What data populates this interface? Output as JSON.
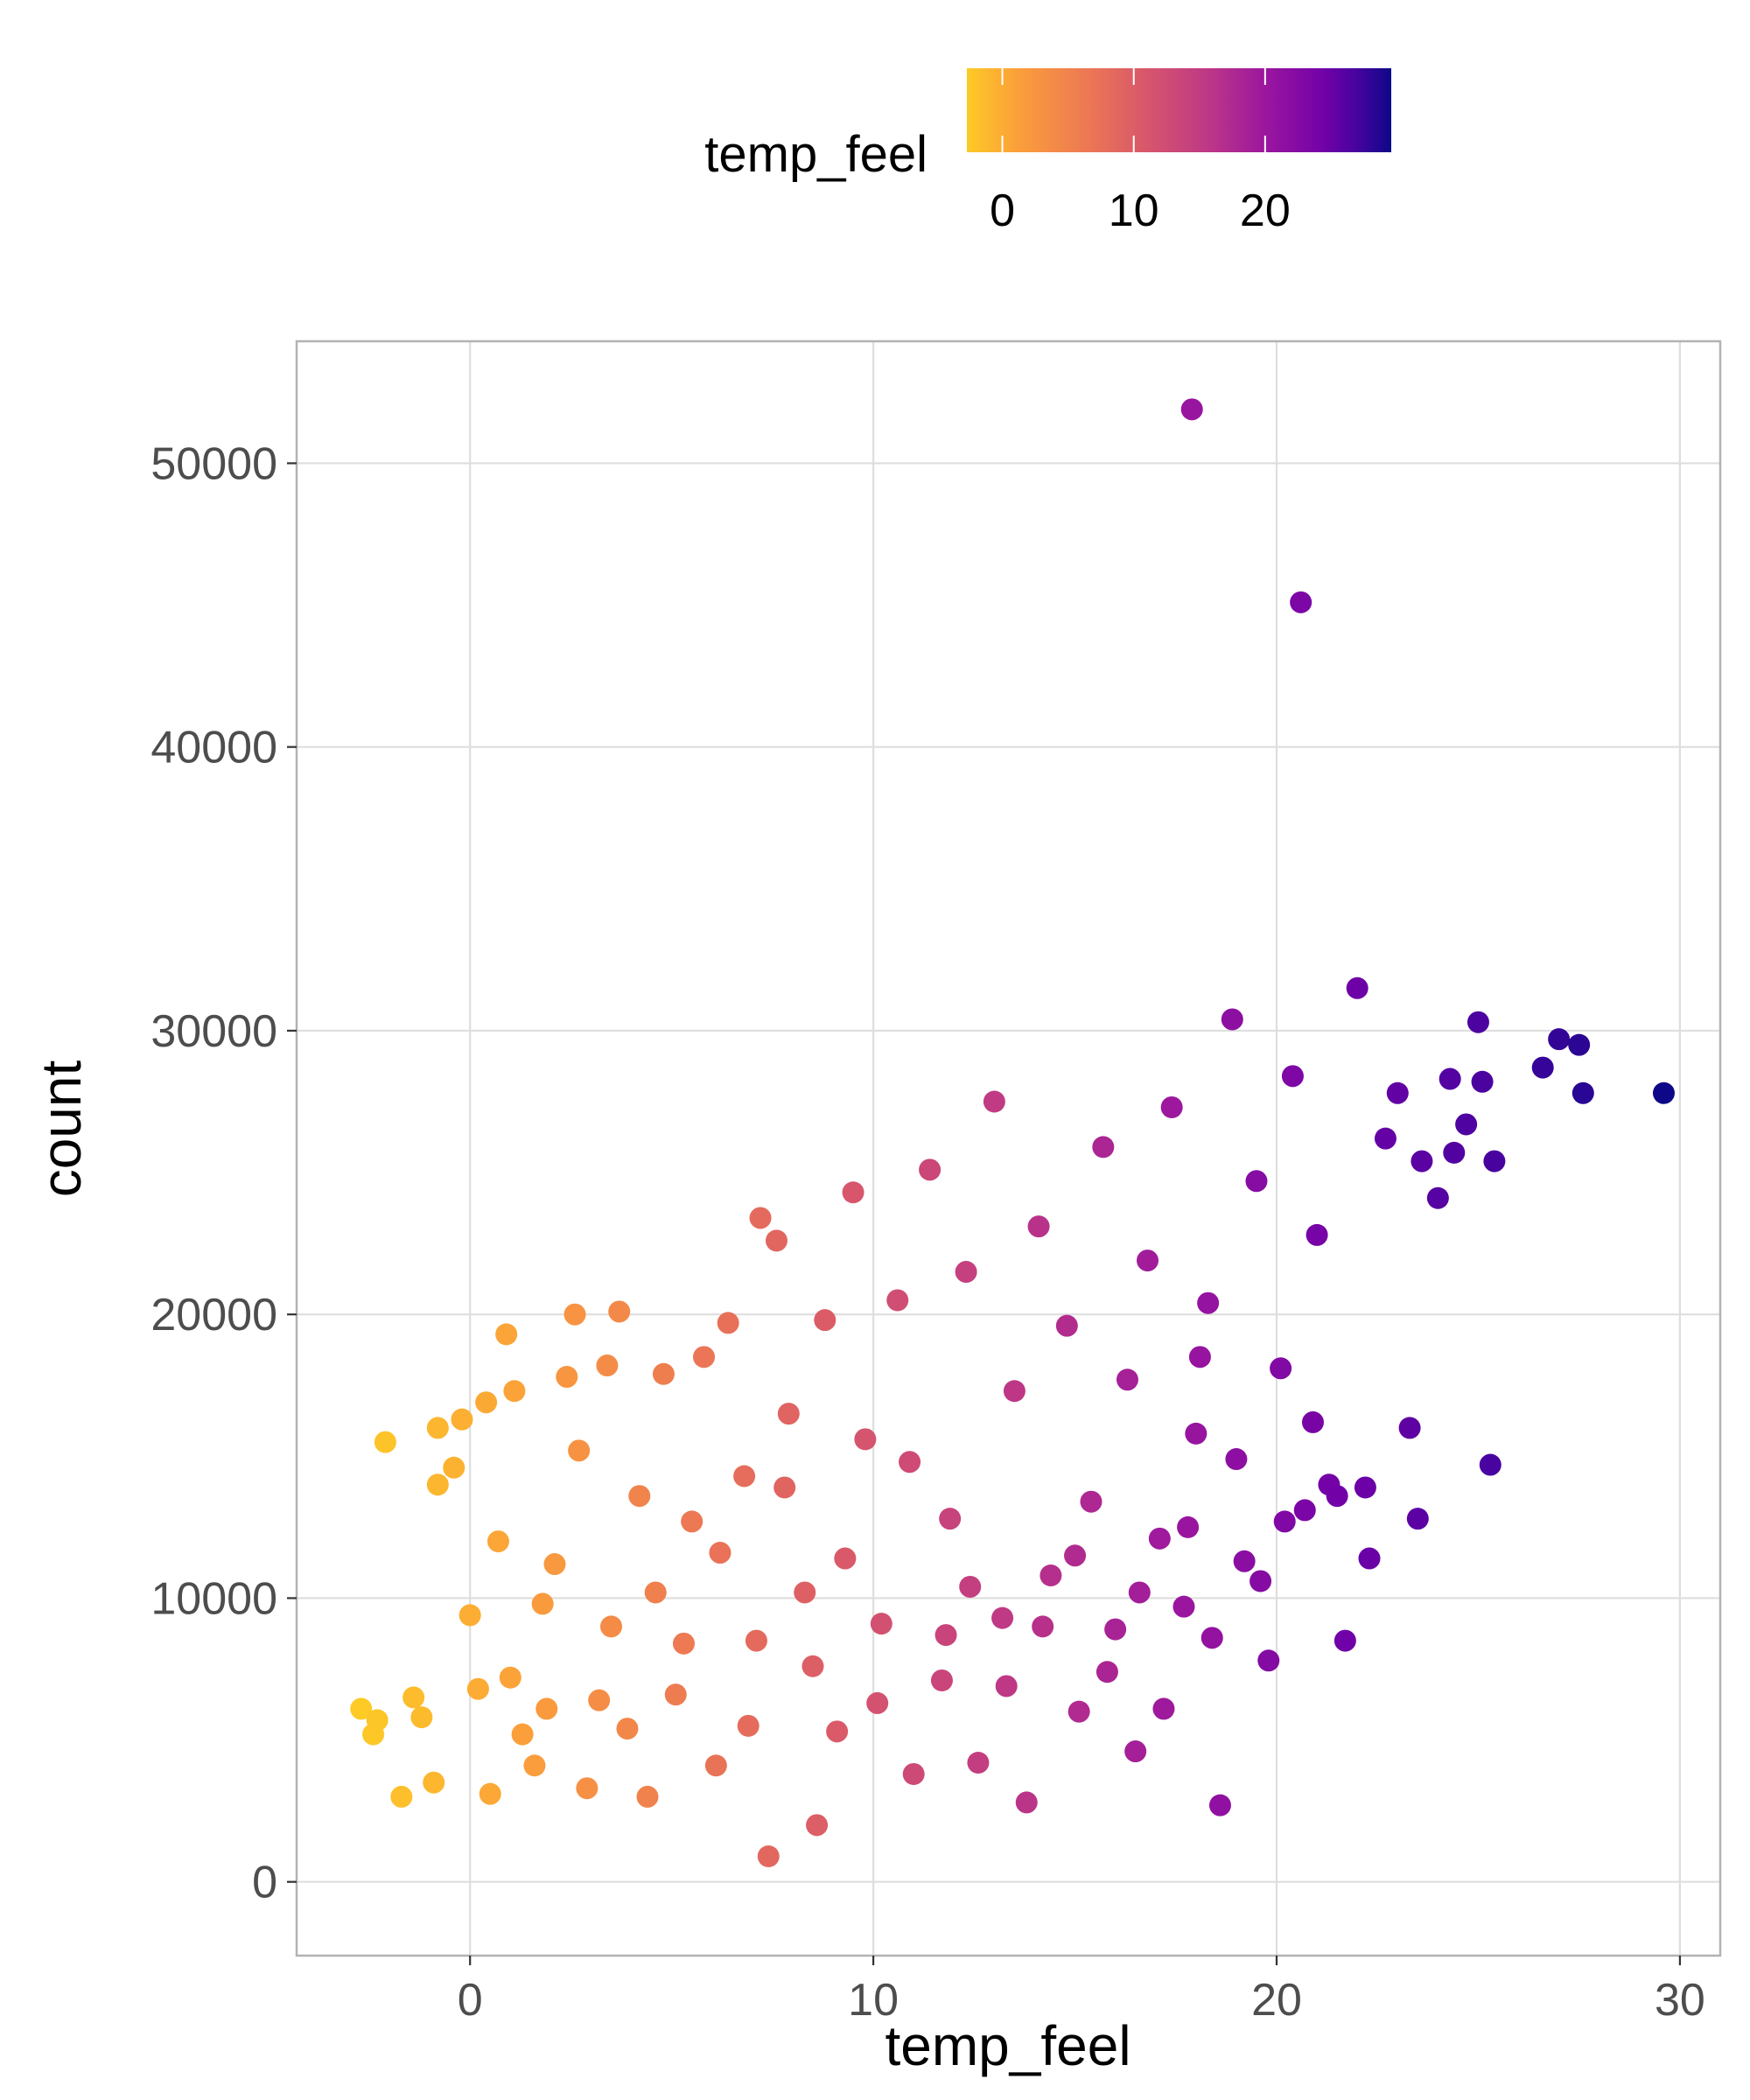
{
  "chart_data": {
    "type": "scatter",
    "title": "",
    "xlabel": "temp_feel",
    "ylabel": "count",
    "xlim": [
      -4.3,
      31
    ],
    "ylim": [
      -2600,
      54300
    ],
    "x_ticks": [
      0,
      10,
      20,
      30
    ],
    "y_ticks": [
      0,
      10000,
      20000,
      30000,
      40000,
      50000
    ],
    "x_tick_labels": [
      "0",
      "10",
      "20",
      "30"
    ],
    "y_tick_labels": [
      "0",
      "10000",
      "20000",
      "30000",
      "40000",
      "50000"
    ],
    "grid": true,
    "legend": {
      "title": "temp_feel",
      "placement": "top",
      "type": "colorbar",
      "range": [
        -2.7,
        29.6
      ],
      "ticks": [
        0,
        10,
        20
      ],
      "tick_labels": [
        "0",
        "10",
        "20"
      ],
      "palette": [
        "#0d0887",
        "#46039f",
        "#7201a8",
        "#9c179e",
        "#bd3786",
        "#d8576b",
        "#ed7953",
        "#fb9f3a",
        "#fdca26",
        "#f0f921"
      ]
    },
    "colors": {
      "panel_border": "#b3b3b3",
      "grid": "#dedede",
      "tick_label": "#4d4d4d"
    },
    "points": [
      [
        17.9,
        51900
      ],
      [
        20.6,
        45100
      ],
      [
        -2.7,
        6100
      ],
      [
        -2.4,
        5200
      ],
      [
        -2.3,
        5700
      ],
      [
        -2.1,
        15500
      ],
      [
        -1.7,
        3000
      ],
      [
        -1.4,
        6500
      ],
      [
        -1.2,
        5800
      ],
      [
        -0.9,
        3500
      ],
      [
        -0.8,
        14000
      ],
      [
        -0.8,
        16000
      ],
      [
        -0.4,
        14600
      ],
      [
        -0.2,
        16300
      ],
      [
        0.0,
        9400
      ],
      [
        0.2,
        6800
      ],
      [
        0.4,
        16900
      ],
      [
        0.7,
        12000
      ],
      [
        0.9,
        19300
      ],
      [
        1.1,
        17300
      ],
      [
        1.3,
        5200
      ],
      [
        1.6,
        4100
      ],
      [
        1.8,
        9800
      ],
      [
        2.1,
        11200
      ],
      [
        2.4,
        17800
      ],
      [
        2.6,
        20000
      ],
      [
        2.9,
        3300
      ],
      [
        3.2,
        6400
      ],
      [
        3.4,
        18200
      ],
      [
        3.7,
        20100
      ],
      [
        3.9,
        5400
      ],
      [
        4.2,
        13600
      ],
      [
        4.6,
        10200
      ],
      [
        4.8,
        17900
      ],
      [
        5.1,
        6600
      ],
      [
        5.5,
        12700
      ],
      [
        5.8,
        18500
      ],
      [
        6.1,
        4100
      ],
      [
        6.4,
        19700
      ],
      [
        6.8,
        14300
      ],
      [
        7.1,
        8500
      ],
      [
        7.2,
        23400
      ],
      [
        7.4,
        900
      ],
      [
        7.6,
        22600
      ],
      [
        7.9,
        16500
      ],
      [
        8.3,
        10200
      ],
      [
        8.6,
        2000
      ],
      [
        8.8,
        19800
      ],
      [
        9.1,
        5300
      ],
      [
        9.5,
        24300
      ],
      [
        9.8,
        15600
      ],
      [
        10.2,
        9100
      ],
      [
        10.6,
        20500
      ],
      [
        11.0,
        3800
      ],
      [
        11.4,
        25100
      ],
      [
        11.7,
        7100
      ],
      [
        11.9,
        12800
      ],
      [
        12.3,
        21500
      ],
      [
        12.6,
        4200
      ],
      [
        13.0,
        27500
      ],
      [
        13.2,
        9300
      ],
      [
        13.5,
        17300
      ],
      [
        13.8,
        2800
      ],
      [
        14.1,
        23100
      ],
      [
        14.4,
        10800
      ],
      [
        14.8,
        19600
      ],
      [
        15.1,
        6000
      ],
      [
        15.4,
        13400
      ],
      [
        15.7,
        25900
      ],
      [
        16.0,
        8900
      ],
      [
        16.3,
        17700
      ],
      [
        16.5,
        4600
      ],
      [
        16.8,
        21900
      ],
      [
        17.1,
        12100
      ],
      [
        17.4,
        27300
      ],
      [
        17.7,
        9700
      ],
      [
        18.0,
        15800
      ],
      [
        18.3,
        20400
      ],
      [
        18.6,
        2700
      ],
      [
        18.9,
        30400
      ],
      [
        19.2,
        11300
      ],
      [
        19.5,
        24700
      ],
      [
        19.8,
        7800
      ],
      [
        20.1,
        18100
      ],
      [
        20.4,
        28400
      ],
      [
        20.7,
        13100
      ],
      [
        21.0,
        22800
      ],
      [
        21.3,
        14000
      ],
      [
        21.7,
        8500
      ],
      [
        22.0,
        31500
      ],
      [
        22.3,
        11400
      ],
      [
        22.7,
        26200
      ],
      [
        23.0,
        27800
      ],
      [
        23.3,
        16000
      ],
      [
        23.6,
        25400
      ],
      [
        24.0,
        24100
      ],
      [
        24.3,
        28300
      ],
      [
        24.7,
        26700
      ],
      [
        25.0,
        30300
      ],
      [
        25.3,
        14700
      ],
      [
        25.4,
        25400
      ],
      [
        26.6,
        28700
      ],
      [
        27.0,
        29700
      ],
      [
        27.5,
        29500
      ],
      [
        27.6,
        27800
      ],
      [
        29.6,
        27800
      ],
      [
        25.1,
        28200
      ],
      [
        24.4,
        25700
      ],
      [
        23.5,
        12800
      ],
      [
        22.2,
        13900
      ],
      [
        0.5,
        3100
      ],
      [
        1.0,
        7200
      ],
      [
        1.9,
        6100
      ],
      [
        2.7,
        15200
      ],
      [
        3.5,
        9000
      ],
      [
        4.4,
        3000
      ],
      [
        5.3,
        8400
      ],
      [
        6.2,
        11600
      ],
      [
        6.9,
        5500
      ],
      [
        7.8,
        13900
      ],
      [
        8.5,
        7600
      ],
      [
        9.3,
        11400
      ],
      [
        10.1,
        6300
      ],
      [
        10.9,
        14800
      ],
      [
        11.8,
        8700
      ],
      [
        12.4,
        10400
      ],
      [
        13.3,
        6900
      ],
      [
        14.2,
        9000
      ],
      [
        15.0,
        11500
      ],
      [
        15.8,
        7400
      ],
      [
        16.6,
        10200
      ],
      [
        17.2,
        6100
      ],
      [
        17.8,
        12500
      ],
      [
        18.4,
        8600
      ],
      [
        19.0,
        14900
      ],
      [
        19.6,
        10600
      ],
      [
        20.2,
        12700
      ],
      [
        20.9,
        16200
      ],
      [
        21.5,
        13600
      ],
      [
        18.1,
        18500
      ]
    ]
  }
}
